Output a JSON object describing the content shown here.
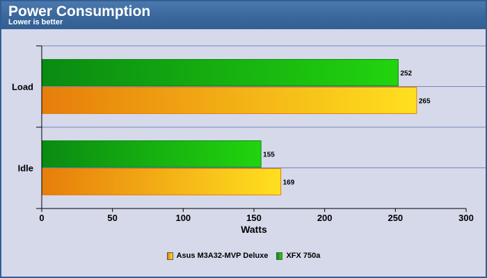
{
  "header": {
    "title": "Power Consumption",
    "subtitle": "Lower is better"
  },
  "chart_data": {
    "type": "bar",
    "orientation": "horizontal",
    "categories": [
      "Load",
      "Idle"
    ],
    "series": [
      {
        "name": "XFX 750a",
        "values": [
          252,
          155
        ],
        "color": "#22d40e",
        "color_dark": "#0a8a12"
      },
      {
        "name": "Asus M3A32-MVP Deluxe",
        "values": [
          265,
          169
        ],
        "color": "#ffe01f",
        "color_dark": "#e67d0b"
      }
    ],
    "value_labels": [
      [
        "252",
        "155"
      ],
      [
        "265",
        "169"
      ]
    ],
    "xlabel": "Watts",
    "xlim": [
      0,
      300
    ],
    "xticks": [
      "0",
      "50",
      "100",
      "150",
      "200",
      "250",
      "300"
    ],
    "grid": true,
    "legend_position": "bottom",
    "legend_order": [
      "Asus M3A32-MVP Deluxe",
      "XFX 750a"
    ]
  },
  "colors": {
    "header_bg": "#3a679c",
    "plot_bg": "#d5d9ea",
    "gridline": "#7487b8"
  }
}
